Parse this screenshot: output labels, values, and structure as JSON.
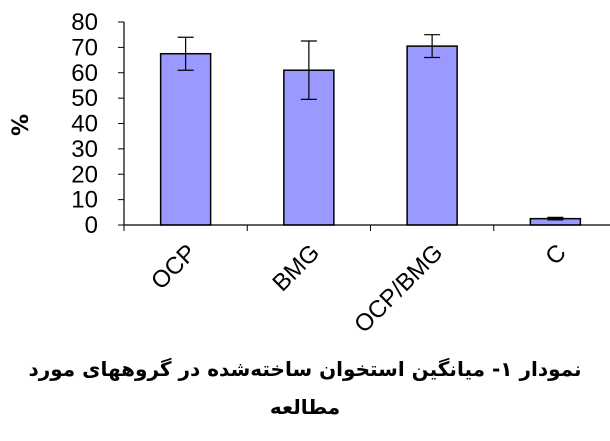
{
  "chart_data": {
    "type": "bar",
    "categories": [
      "OCP",
      "BMG",
      "OCP/BMG",
      "C"
    ],
    "values": [
      67.5,
      61,
      70.5,
      2.5
    ],
    "errors": [
      6.5,
      11.5,
      4.5,
      0.5
    ],
    "ylabel": "%",
    "xlabel": "",
    "ylim": [
      0,
      80
    ],
    "yticks": [
      "0",
      "10",
      "20",
      "30",
      "40",
      "50",
      "60",
      "70",
      "80"
    ],
    "grid": false,
    "legend": "none",
    "bar_color": "#9999ff",
    "bar_edge_color": "#000000"
  },
  "caption": {
    "line1": "نمودار ۱- میانگین استخوان ساخته‌شده در گروههای مورد",
    "line2": "مطالعه"
  }
}
